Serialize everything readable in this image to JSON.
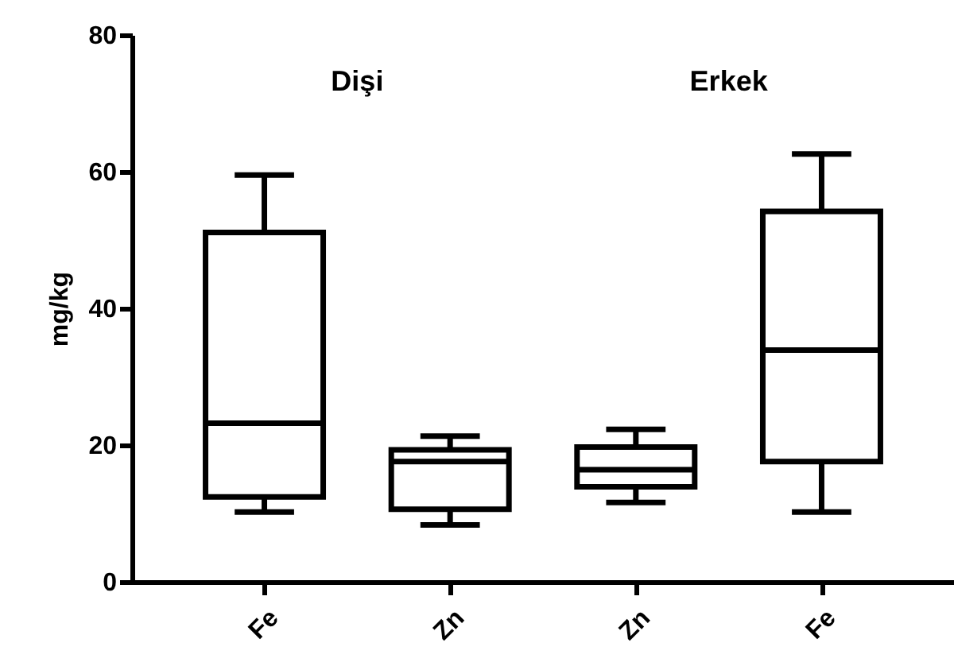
{
  "chart_data": {
    "type": "box",
    "ylabel": "mg/kg",
    "annotations": [
      "Dişi",
      "Erkek"
    ],
    "categories": [
      "Fe",
      "Zn",
      "Zn",
      "Fe"
    ],
    "boxes": [
      {
        "low": 10.2,
        "q1": 12.4,
        "median": 23.2,
        "q3": 51.1,
        "high": 59.5
      },
      {
        "low": 8.3,
        "q1": 10.6,
        "median": 17.6,
        "q3": 19.3,
        "high": 21.3
      },
      {
        "low": 11.6,
        "q1": 13.9,
        "median": 16.4,
        "q3": 19.7,
        "high": 22.3
      },
      {
        "low": 10.2,
        "q1": 17.6,
        "median": 33.9,
        "q3": 54.2,
        "high": 62.6
      }
    ],
    "ylim": [
      0,
      80
    ],
    "yticks": [
      0,
      20,
      40,
      60,
      80
    ]
  }
}
